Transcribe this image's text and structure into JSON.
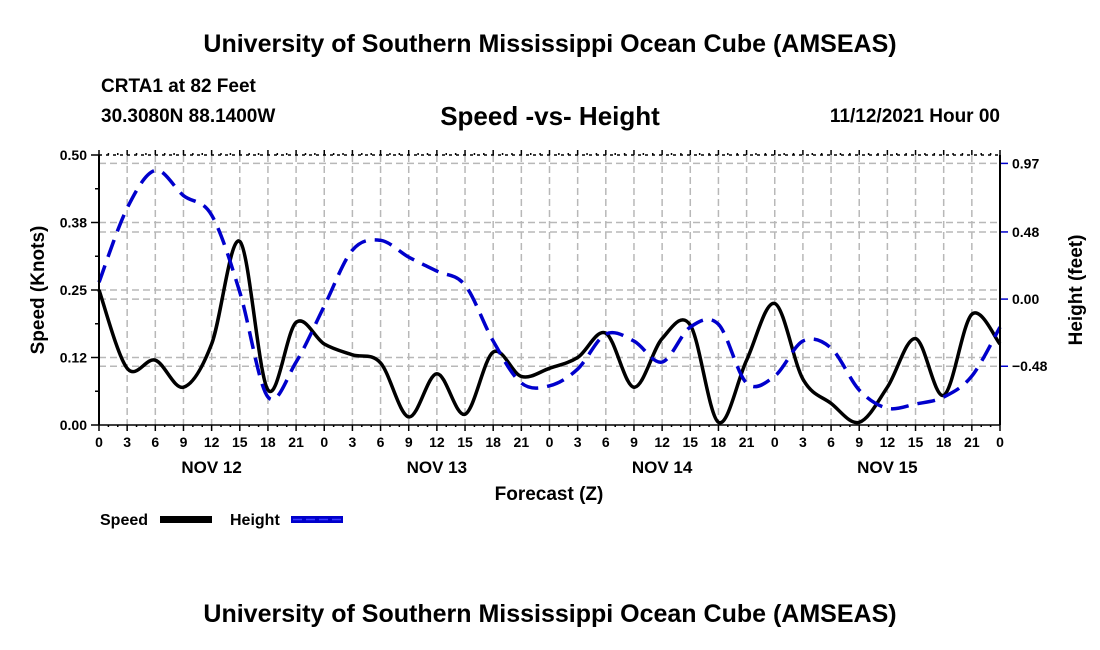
{
  "header": {
    "title": "University of Southern Mississippi Ocean Cube (AMSEAS)",
    "station": "CRTA1 at 82 Feet",
    "coordinates": "30.3080N  88.1400W",
    "subtitle": "Speed -vs- Height",
    "datetime": "11/12/2021 Hour 00"
  },
  "footer": {
    "title": "University of Southern Mississippi Ocean Cube (AMSEAS)"
  },
  "chart_data": {
    "type": "line",
    "title": "Speed -vs- Height",
    "xlabel": "Forecast (Z)",
    "ylabel": "Speed (Knots)",
    "y2label": "Height (feet)",
    "x_unit": "forecast hour",
    "xlim": [
      0,
      96
    ],
    "ylim": [
      0,
      0.5
    ],
    "y2lim": [
      -0.9,
      1.03
    ],
    "grid": true,
    "x_tick_labels": [
      "0",
      "3",
      "6",
      "9",
      "12",
      "15",
      "18",
      "21",
      "0",
      "3",
      "6",
      "9",
      "12",
      "15",
      "18",
      "21",
      "0",
      "3",
      "6",
      "9",
      "12",
      "15",
      "18",
      "21",
      "0",
      "3",
      "6",
      "9",
      "12",
      "15",
      "18",
      "21",
      "0"
    ],
    "day_labels": [
      {
        "label": "NOV 12",
        "hour": 12
      },
      {
        "label": "NOV 13",
        "hour": 36
      },
      {
        "label": "NOV 14",
        "hour": 60
      },
      {
        "label": "NOV 15",
        "hour": 84
      }
    ],
    "y_ticks": [
      "0.00",
      "0.12",
      "0.25",
      "0.38",
      "0.50"
    ],
    "y_tick_values": [
      0,
      0.125,
      0.25,
      0.375,
      0.5
    ],
    "y2_ticks": [
      "0.97",
      "0.48",
      "0.00",
      "−0.48"
    ],
    "y2_tick_values": [
      0.97,
      0.48,
      0.0,
      -0.48
    ],
    "legend": {
      "placement": "bottom-left",
      "entries": [
        {
          "label": "Speed",
          "color": "#000000",
          "style": "solid"
        },
        {
          "label": "Height",
          "color": "#0000cc",
          "style": "dashed"
        }
      ]
    },
    "x": [
      0,
      3,
      6,
      9,
      12,
      15,
      18,
      21,
      24,
      27,
      30,
      33,
      36,
      39,
      42,
      45,
      48,
      51,
      54,
      57,
      60,
      63,
      66,
      69,
      72,
      75,
      78,
      81,
      84,
      87,
      90,
      93,
      96
    ],
    "series": [
      {
        "name": "Speed",
        "axis": "left",
        "color": "#000000",
        "values": [
          0.25,
          0.105,
          0.12,
          0.07,
          0.15,
          0.34,
          0.065,
          0.19,
          0.15,
          0.13,
          0.115,
          0.015,
          0.095,
          0.02,
          0.135,
          0.09,
          0.105,
          0.125,
          0.17,
          0.07,
          0.16,
          0.185,
          0.005,
          0.12,
          0.225,
          0.085,
          0.04,
          0.005,
          0.07,
          0.16,
          0.055,
          0.205,
          0.15
        ]
      },
      {
        "name": "Height",
        "axis": "right",
        "color": "#0000cc",
        "values": [
          0.12,
          0.65,
          0.92,
          0.74,
          0.6,
          0.05,
          -0.7,
          -0.45,
          -0.05,
          0.35,
          0.42,
          0.3,
          0.2,
          0.1,
          -0.3,
          -0.6,
          -0.62,
          -0.5,
          -0.25,
          -0.3,
          -0.45,
          -0.2,
          -0.18,
          -0.6,
          -0.55,
          -0.3,
          -0.35,
          -0.65,
          -0.78,
          -0.75,
          -0.7,
          -0.55,
          -0.2
        ]
      }
    ]
  }
}
